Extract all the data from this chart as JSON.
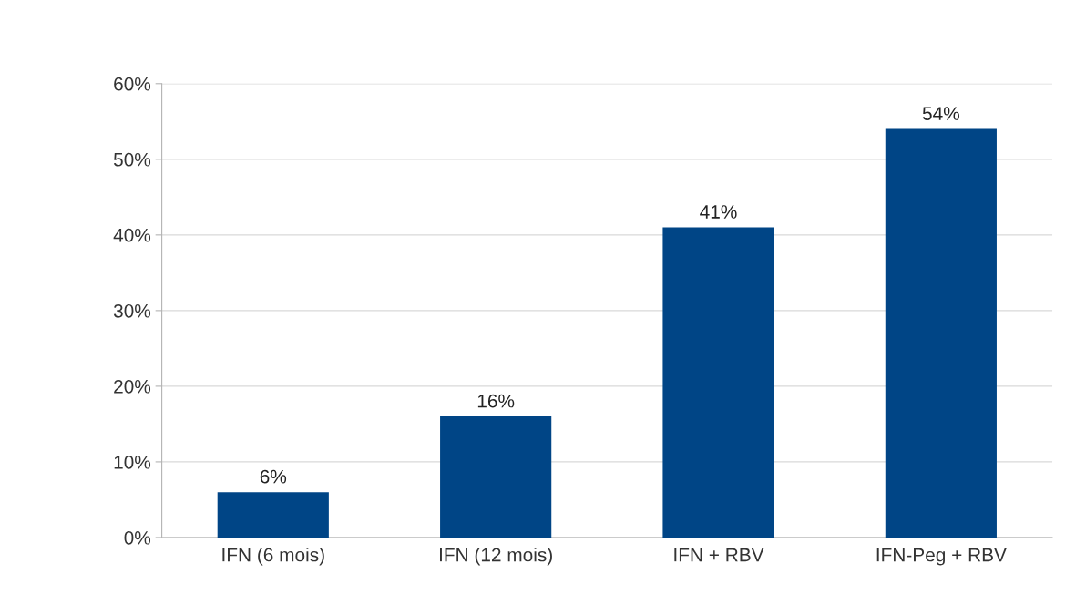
{
  "chart_data": {
    "type": "bar",
    "categories": [
      "IFN (6 mois)",
      "IFN (12 mois)",
      "IFN + RBV",
      "IFN-Peg + RBV"
    ],
    "values": [
      6,
      16,
      41,
      54
    ],
    "value_labels": [
      "6%",
      "16%",
      "41%",
      "54%"
    ],
    "color": "#004586",
    "ylim": [
      0,
      60
    ],
    "yticks": [
      {
        "value": 0,
        "label": "0%"
      },
      {
        "value": 10,
        "label": "10%"
      },
      {
        "value": 20,
        "label": "20%"
      },
      {
        "value": 30,
        "label": "30%"
      },
      {
        "value": 40,
        "label": "40%"
      },
      {
        "value": 50,
        "label": "50%"
      },
      {
        "value": 60,
        "label": "60%"
      }
    ],
    "grid": "y",
    "legend": false
  }
}
